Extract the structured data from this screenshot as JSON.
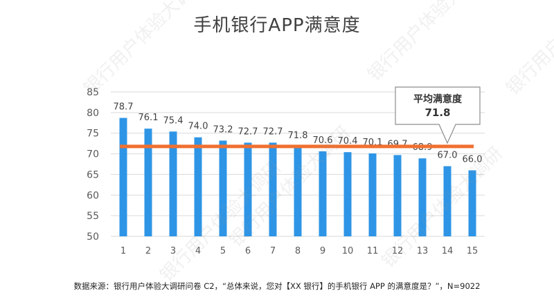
{
  "title": "手机银行APP满意度",
  "source_note": "数据来源：银行用户体验大调研问卷 C2，“总体来说，您对【XX 银行】的手机银行 APP 的满意度是？”，N=9022",
  "watermark_text": "银行用户体验大调研",
  "colors": {
    "bar": "#2E95E6",
    "average_line": "#F07030",
    "grid": "#D9D9D9",
    "axis_text": "#595959",
    "label_text": "#404040"
  },
  "chart_data": {
    "type": "bar",
    "title": "手机银行APP满意度",
    "categories": [
      "1",
      "2",
      "3",
      "4",
      "5",
      "6",
      "7",
      "8",
      "9",
      "10",
      "11",
      "12",
      "13",
      "14",
      "15"
    ],
    "values": [
      78.7,
      76.1,
      75.4,
      74.0,
      73.2,
      72.7,
      72.7,
      71.8,
      70.6,
      70.4,
      70.1,
      69.7,
      68.9,
      67.0,
      66.0
    ],
    "value_labels": [
      "78.7",
      "76.1",
      "75.4",
      "74.0",
      "73.2",
      "72.7",
      "72.7",
      "71.8",
      "70.6",
      "70.4",
      "70.1",
      "69.7",
      "68.9",
      "67.0",
      "66.0"
    ],
    "ylim": [
      50,
      85
    ],
    "yticks": [
      "50",
      "55",
      "60",
      "65",
      "70",
      "75",
      "80",
      "85"
    ],
    "grid": true,
    "average": {
      "value": 71.8,
      "label": "平均满意度",
      "value_label": "71.8"
    }
  }
}
